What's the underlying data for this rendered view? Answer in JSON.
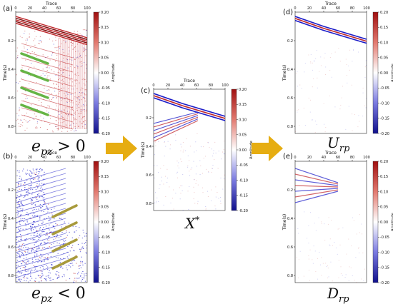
{
  "panels": [
    {
      "id": "a",
      "letter": "(a)",
      "kind": "seis_pos",
      "arrows": [
        {
          "dir": "down"
        },
        {
          "dir": "down"
        },
        {
          "dir": "down"
        },
        {
          "dir": "down"
        }
      ]
    },
    {
      "id": "b",
      "letter": "(b)",
      "kind": "seis_neg",
      "arrows": [
        {
          "dir": "up"
        },
        {
          "dir": "up"
        },
        {
          "dir": "up"
        },
        {
          "dir": "up"
        }
      ]
    },
    {
      "id": "c",
      "letter": "(c)",
      "kind": "seis_clean"
    },
    {
      "id": "d",
      "letter": "(d)",
      "kind": "seis_up"
    },
    {
      "id": "e",
      "letter": "(e)",
      "kind": "seis_down"
    }
  ],
  "axis": {
    "x_title": "Trace",
    "y_title": "Time(s)",
    "x_ticks": [
      "0",
      "20",
      "40",
      "60",
      "80",
      "100"
    ],
    "y_ticks": [
      "0.2",
      "0.4",
      "0.6",
      "0.8"
    ],
    "colorbar_title": "Amplitude",
    "colorbar_ticks": [
      "0.20",
      "0.15",
      "0.10",
      "0.05",
      "0.00",
      "-0.05",
      "-0.10",
      "-0.15",
      "-0.20"
    ]
  },
  "captions": {
    "a": {
      "base": "e",
      "sub": "pz",
      "rest": " > 0"
    },
    "b": {
      "base": "e",
      "sub": "pz",
      "rest": " < 0"
    },
    "c": {
      "base": "X",
      "sup": "*"
    },
    "d": {
      "base": "U",
      "sub": "rp"
    },
    "e": {
      "base": "D",
      "sub": "rp"
    }
  },
  "flow_arrows": [
    {
      "from": "a-b",
      "to": "c"
    },
    {
      "from": "c",
      "to": "d-e"
    }
  ],
  "colors": {
    "positive": "#c0262a",
    "negative": "#1c1cc8",
    "arrow_green": "#66b445",
    "arrow_olive": "#a89a3c",
    "flow_arrow": "#e6ad12"
  }
}
